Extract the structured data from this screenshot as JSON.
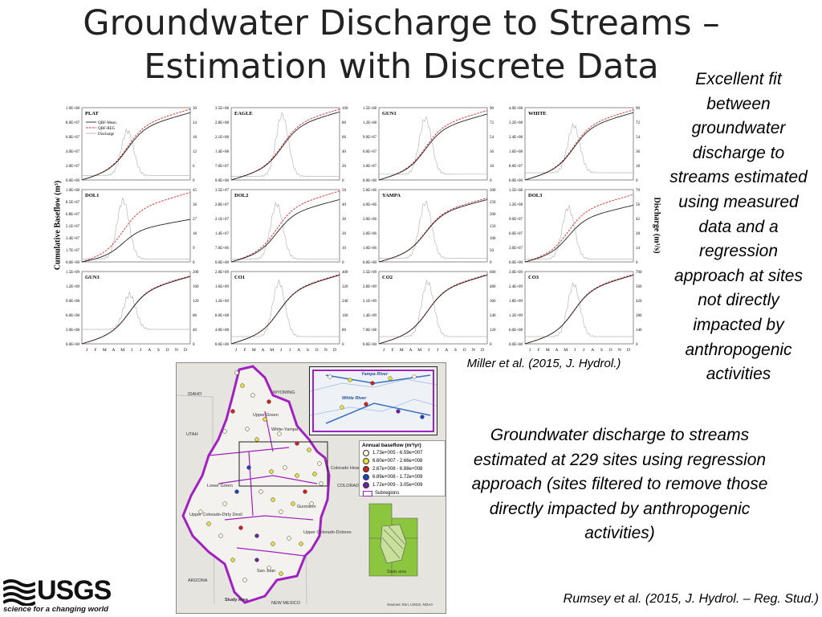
{
  "title": {
    "line1": "Groundwater Discharge to Streams –",
    "line2": "Estimation with Discrete Data"
  },
  "notes": {
    "right": "Excellent fit between groundwater discharge to streams estimated using measured data and a regression approach at sites not directly impacted by anthropogenic activities",
    "middle": "Groundwater discharge to streams estimated at 229 sites using regression approach (sites filtered to remove those directly impacted by anthropogenic activities)",
    "cite_miller": "Miller et al. (2015, J. Hydrol.)",
    "cite_rumsey": "Rumsey et al. (2015, J. Hydrol. – Reg. Stud.)"
  },
  "logo": {
    "word": "USGS",
    "tagline": "science for a changing world"
  },
  "colors": {
    "qbf_mean": "#222222",
    "qbf_reg": "#e02020",
    "discharge": "#b8b8b8",
    "subregion": "#a020c0",
    "locator_green": "#8cc63f"
  },
  "chart_data": {
    "type": "line",
    "y_axis_left_title": "Cumulative Baseflow (m³)",
    "y_axis_right_title": "Discharge (m³/s)",
    "months": [
      "J",
      "F",
      "M",
      "A",
      "M",
      "J",
      "J",
      "A",
      "S",
      "O",
      "N",
      "D"
    ],
    "legend": [
      "QBF-Mean",
      "QBF-REG",
      "Discharge"
    ],
    "panels": [
      {
        "name": "PLAT",
        "left_ticks": [
          "0.0E+00",
          "2.0E+07",
          "4.0E+07",
          "6.0E+07",
          "8.0E+07",
          "1.0E+08"
        ],
        "right_ticks": [
          "0",
          "6",
          "12",
          "18",
          "24",
          "30"
        ],
        "mean_end": 0.95,
        "reg_end": 1.0,
        "peak": 0.68,
        "peak_pos": 0.42,
        "base": 0.06
      },
      {
        "name": "EAGLE",
        "left_ticks": [
          "0.0E+00",
          "7.0E+07",
          "1.4E+08",
          "2.1E+08",
          "2.8E+08",
          "3.5E+08"
        ],
        "right_ticks": [
          "0",
          "20",
          "40",
          "60",
          "80",
          "100"
        ],
        "mean_end": 0.96,
        "reg_end": 1.0,
        "peak": 0.9,
        "peak_pos": 0.47,
        "base": 0.05
      },
      {
        "name": "GUN1",
        "left_ticks": [
          "0.0E+00",
          "3.0E+07",
          "6.0E+07",
          "9.0E+07",
          "1.2E+08",
          "1.5E+08"
        ],
        "right_ticks": [
          "0",
          "18",
          "36",
          "54",
          "72",
          "90"
        ],
        "mean_end": 0.93,
        "reg_end": 0.98,
        "peak": 0.85,
        "peak_pos": 0.43,
        "base": 0.08
      },
      {
        "name": "WHITE",
        "left_ticks": [
          "0.0E+00",
          "8.0E+07",
          "1.6E+08",
          "2.4E+08",
          "3.2E+08",
          "4.0E+08"
        ],
        "right_ticks": [
          "0",
          "18",
          "36",
          "54",
          "72",
          "90"
        ],
        "mean_end": 0.95,
        "reg_end": 0.99,
        "peak": 0.75,
        "peak_pos": 0.45,
        "base": 0.1
      },
      {
        "name": "DOL1",
        "left_ticks": [
          "0.0E+00",
          "1.7E+07",
          "3.4E+07",
          "5.1E+07",
          "6.8E+07",
          "8.5E+07",
          "1.0E+08"
        ],
        "right_ticks": [
          "0",
          "9",
          "18",
          "27",
          "36",
          "45"
        ],
        "mean_end": 0.6,
        "reg_end": 0.98,
        "peak": 0.85,
        "peak_pos": 0.38,
        "base": 0.04
      },
      {
        "name": "DOL2",
        "left_ticks": [
          "0.0E+00",
          "7.0E+06",
          "1.4E+07",
          "2.1E+07",
          "2.8E+07",
          "3.5E+07"
        ],
        "right_ticks": [
          "0",
          "10",
          "20",
          "30",
          "40",
          "50"
        ],
        "mean_end": 0.88,
        "reg_end": 1.0,
        "peak": 0.8,
        "peak_pos": 0.42,
        "base": 0.04
      },
      {
        "name": "YAMPA",
        "left_ticks": [
          "0.0E+00",
          "1.0E+06",
          "2.0E+06",
          "3.0E+06",
          "4.0E+06",
          "5.0E+06"
        ],
        "right_ticks": [
          "0",
          "50",
          "100",
          "150",
          "200",
          "250",
          "300"
        ],
        "mean_end": 0.88,
        "reg_end": 0.9,
        "peak": 0.82,
        "peak_pos": 0.43,
        "base": 0.05
      },
      {
        "name": "DOL3",
        "left_ticks": [
          "0.0E+00",
          "3.0E+07",
          "6.0E+07",
          "9.0E+07",
          "1.2E+08",
          "1.5E+08"
        ],
        "right_ticks": [
          "0",
          "14",
          "28",
          "42",
          "56",
          "70"
        ],
        "mean_end": 0.8,
        "reg_end": 0.95,
        "peak": 0.75,
        "peak_pos": 0.4,
        "base": 0.04
      },
      {
        "name": "GUN3",
        "left_ticks": [
          "0.0E+00",
          "3.0E+08",
          "6.0E+08",
          "9.0E+08",
          "1.2E+09",
          "1.5E+09"
        ],
        "right_ticks": [
          "0",
          "40",
          "80",
          "120",
          "160",
          "200"
        ],
        "mean_end": 0.95,
        "reg_end": 0.96,
        "peak": 0.68,
        "peak_pos": 0.44,
        "base": 0.2
      },
      {
        "name": "CO1",
        "left_ticks": [
          "0.0E+00",
          "4.0E+08",
          "8.0E+08",
          "1.2E+09",
          "1.6E+09",
          "2.0E+09"
        ],
        "right_ticks": [
          "0",
          "80",
          "160",
          "240",
          "320",
          "400"
        ],
        "mean_end": 0.97,
        "reg_end": 0.98,
        "peak": 0.85,
        "peak_pos": 0.44,
        "base": 0.1
      },
      {
        "name": "CO2",
        "left_ticks": [
          "0.0E+00",
          "7.0E+08",
          "1.4E+09",
          "2.1E+09",
          "2.8E+09",
          "3.5E+09"
        ],
        "right_ticks": [
          "0",
          "120",
          "240",
          "360",
          "480",
          "600"
        ],
        "mean_end": 0.97,
        "reg_end": 0.98,
        "peak": 0.85,
        "peak_pos": 0.45,
        "base": 0.1
      },
      {
        "name": "CO3",
        "left_ticks": [
          "0.0E+00",
          "6.0E+08",
          "1.2E+09",
          "1.8E+09",
          "2.4E+09",
          "3.0E+09"
        ],
        "right_ticks": [
          "0",
          "140",
          "280",
          "420",
          "560",
          "700"
        ],
        "mean_end": 0.97,
        "reg_end": 0.98,
        "peak": 0.82,
        "peak_pos": 0.45,
        "base": 0.1
      }
    ]
  },
  "map": {
    "legend_title": "Annual baseflow (m³/yr)",
    "legend_items": [
      {
        "label": "1.73e+005 - 6.59e+007",
        "color": "#fffde0"
      },
      {
        "label": "6.60e+007 - 2.66e+008",
        "color": "#e8e040"
      },
      {
        "label": "2.67e+008 - 6.88e+008",
        "color": "#d02020"
      },
      {
        "label": "6.89e+008 - 1.72e+009",
        "color": "#2040c0"
      },
      {
        "label": "1.72e+009 - 3.05e+009",
        "color": "#7020a0"
      }
    ],
    "subregions_label": "Subregions",
    "labels": {
      "idaho": "IDAHO",
      "wyoming": "WYOMING",
      "utah": "UTAH",
      "colorado": "COLORADO",
      "arizona": "ARIZONA",
      "new_mexico": "NEW MEXICO",
      "upper_green": "Upper Green",
      "white_yampa": "White-Yampa",
      "lower_green": "Lower Green",
      "colorado_headwaters": "Colorado Headwaters",
      "gunnison": "Gunnison",
      "upper_colorado_dolores": "Upper Colorado-Dolores",
      "upper_colorado_dirty_devil": "Upper Colorado-Dirty Devil",
      "san_juan": "San Juan",
      "study_area": "Study Area",
      "study_area_locator": "Study area",
      "yampa_river": "Yampa River",
      "white_river": "White River",
      "sources": "Sources: Esri, USGS, NOAA"
    }
  }
}
